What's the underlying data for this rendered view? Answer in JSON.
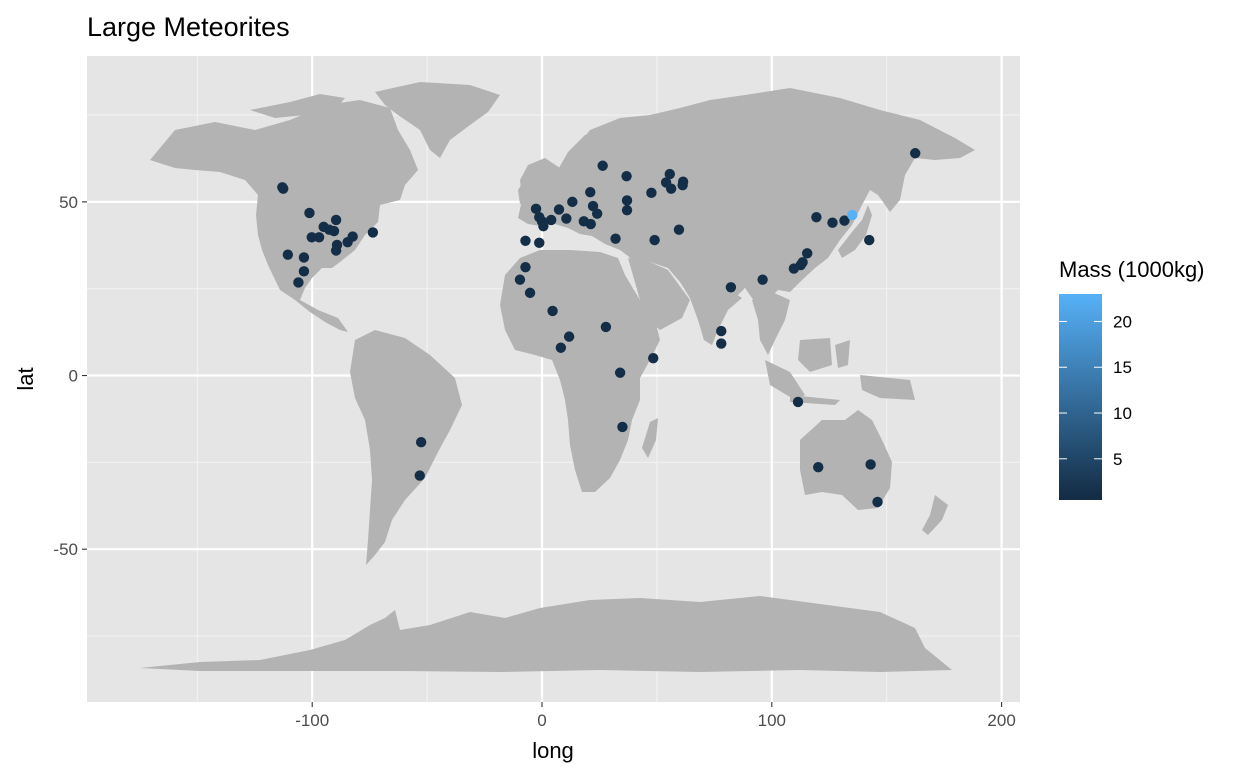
{
  "chart_data": {
    "type": "scatter",
    "title": "Large Meteorites",
    "xlabel": "long",
    "ylabel": "lat",
    "xlim": [
      -198,
      208
    ],
    "ylim": [
      -94,
      92
    ],
    "x_ticks": [
      -100,
      0,
      100,
      200
    ],
    "y_ticks": [
      -50,
      0,
      50
    ],
    "x_tick_labels": [
      "-100",
      "0",
      "100",
      "200"
    ],
    "y_tick_labels": [
      "-50",
      "0",
      "50"
    ],
    "grid": true,
    "background": "map of world countries",
    "legend": {
      "title": "Mass (1000kg)",
      "placement": "right",
      "range": [
        0.5,
        23
      ],
      "ticks": [
        5,
        10,
        15,
        20
      ],
      "tick_labels": [
        "5",
        "10",
        "15",
        "20"
      ],
      "color_low": "#132B43",
      "color_high": "#56B1F7"
    },
    "colors": {
      "panel": "#E5E5E5",
      "grid_major": "#FFFFFF",
      "grid_minor": "#F2F2F2",
      "land": "#B3B3B3"
    },
    "points": [
      {
        "long": -113.0,
        "lat": 54.2,
        "mass": 1
      },
      {
        "long": -112.6,
        "lat": 53.8,
        "mass": 1
      },
      {
        "long": -101.2,
        "lat": 46.8,
        "mass": 1
      },
      {
        "long": -100.2,
        "lat": 39.8,
        "mass": 1
      },
      {
        "long": -97.0,
        "lat": 39.8,
        "mass": 1
      },
      {
        "long": -95.0,
        "lat": 42.8,
        "mass": 1
      },
      {
        "long": -92.6,
        "lat": 42.0,
        "mass": 1
      },
      {
        "long": -90.5,
        "lat": 41.6,
        "mass": 1
      },
      {
        "long": -89.6,
        "lat": 44.8,
        "mass": 1
      },
      {
        "long": -89.2,
        "lat": 37.6,
        "mass": 1
      },
      {
        "long": -89.6,
        "lat": 36.0,
        "mass": 1
      },
      {
        "long": -84.6,
        "lat": 38.4,
        "mass": 1
      },
      {
        "long": -82.4,
        "lat": 40.0,
        "mass": 1
      },
      {
        "long": -73.6,
        "lat": 41.2,
        "mass": 1
      },
      {
        "long": -110.6,
        "lat": 34.8,
        "mass": 1
      },
      {
        "long": -103.6,
        "lat": 34.0,
        "mass": 1
      },
      {
        "long": -103.6,
        "lat": 30.0,
        "mass": 1
      },
      {
        "long": -106.0,
        "lat": 26.8,
        "mass": 1
      },
      {
        "long": -52.6,
        "lat": -19.2,
        "mass": 1
      },
      {
        "long": -53.2,
        "lat": -28.8,
        "mass": 1
      },
      {
        "long": -2.6,
        "lat": 48.0,
        "mass": 1
      },
      {
        "long": -1.2,
        "lat": 45.6,
        "mass": 1
      },
      {
        "long": 0.0,
        "lat": 44.4,
        "mass": 1
      },
      {
        "long": 0.6,
        "lat": 43.0,
        "mass": 1
      },
      {
        "long": 4.0,
        "lat": 44.8,
        "mass": 1
      },
      {
        "long": 7.4,
        "lat": 47.8,
        "mass": 1
      },
      {
        "long": 10.6,
        "lat": 45.2,
        "mass": 1
      },
      {
        "long": 13.2,
        "lat": 50.0,
        "mass": 1
      },
      {
        "long": 18.2,
        "lat": 44.4,
        "mass": 1
      },
      {
        "long": 21.2,
        "lat": 43.6,
        "mass": 1
      },
      {
        "long": 21.0,
        "lat": 52.8,
        "mass": 1
      },
      {
        "long": 22.2,
        "lat": 48.8,
        "mass": 1
      },
      {
        "long": 24.0,
        "lat": 46.6,
        "mass": 1
      },
      {
        "long": 26.4,
        "lat": 60.4,
        "mass": 1
      },
      {
        "long": 32.0,
        "lat": 39.4,
        "mass": 1
      },
      {
        "long": 36.8,
        "lat": 57.4,
        "mass": 1
      },
      {
        "long": 37.0,
        "lat": 50.4,
        "mass": 1
      },
      {
        "long": 37.0,
        "lat": 47.6,
        "mass": 1
      },
      {
        "long": 47.6,
        "lat": 52.6,
        "mass": 1
      },
      {
        "long": 55.6,
        "lat": 58.0,
        "mass": 1
      },
      {
        "long": 54.0,
        "lat": 55.6,
        "mass": 1
      },
      {
        "long": 56.2,
        "lat": 53.8,
        "mass": 1
      },
      {
        "long": 61.4,
        "lat": 55.8,
        "mass": 1
      },
      {
        "long": 61.2,
        "lat": 54.8,
        "mass": 1
      },
      {
        "long": 59.6,
        "lat": 42.0,
        "mass": 1
      },
      {
        "long": 49.0,
        "lat": 39.0,
        "mass": 1
      },
      {
        "long": -7.2,
        "lat": 38.8,
        "mass": 1
      },
      {
        "long": -1.2,
        "lat": 38.2,
        "mass": 1
      },
      {
        "long": -7.2,
        "lat": 31.2,
        "mass": 1
      },
      {
        "long": -9.6,
        "lat": 27.6,
        "mass": 1
      },
      {
        "long": -5.2,
        "lat": 23.8,
        "mass": 1
      },
      {
        "long": 4.6,
        "lat": 18.6,
        "mass": 1
      },
      {
        "long": 11.8,
        "lat": 11.2,
        "mass": 1
      },
      {
        "long": 8.2,
        "lat": 8.0,
        "mass": 1
      },
      {
        "long": 27.8,
        "lat": 14.0,
        "mass": 1
      },
      {
        "long": 48.4,
        "lat": 5.0,
        "mass": 1
      },
      {
        "long": 34.0,
        "lat": 0.8,
        "mass": 1
      },
      {
        "long": 35.0,
        "lat": -14.8,
        "mass": 1
      },
      {
        "long": 78.0,
        "lat": 12.8,
        "mass": 1
      },
      {
        "long": 78.0,
        "lat": 9.2,
        "mass": 1
      },
      {
        "long": 82.2,
        "lat": 25.4,
        "mass": 1
      },
      {
        "long": 96.0,
        "lat": 27.6,
        "mass": 1
      },
      {
        "long": 109.6,
        "lat": 30.8,
        "mass": 1
      },
      {
        "long": 112.6,
        "lat": 31.8,
        "mass": 1
      },
      {
        "long": 113.4,
        "lat": 32.6,
        "mass": 1
      },
      {
        "long": 115.4,
        "lat": 35.2,
        "mass": 1
      },
      {
        "long": 119.4,
        "lat": 45.6,
        "mass": 1
      },
      {
        "long": 126.4,
        "lat": 44.0,
        "mass": 1
      },
      {
        "long": 131.6,
        "lat": 44.6,
        "mass": 1
      },
      {
        "long": 135.0,
        "lat": 46.2,
        "mass": 23
      },
      {
        "long": 142.4,
        "lat": 39.0,
        "mass": 1
      },
      {
        "long": 162.4,
        "lat": 64.0,
        "mass": 1
      },
      {
        "long": 111.4,
        "lat": -7.6,
        "mass": 1
      },
      {
        "long": 120.2,
        "lat": -26.4,
        "mass": 1
      },
      {
        "long": 143.0,
        "lat": -25.6,
        "mass": 1
      },
      {
        "long": 146.0,
        "lat": -36.4,
        "mass": 1
      }
    ]
  }
}
